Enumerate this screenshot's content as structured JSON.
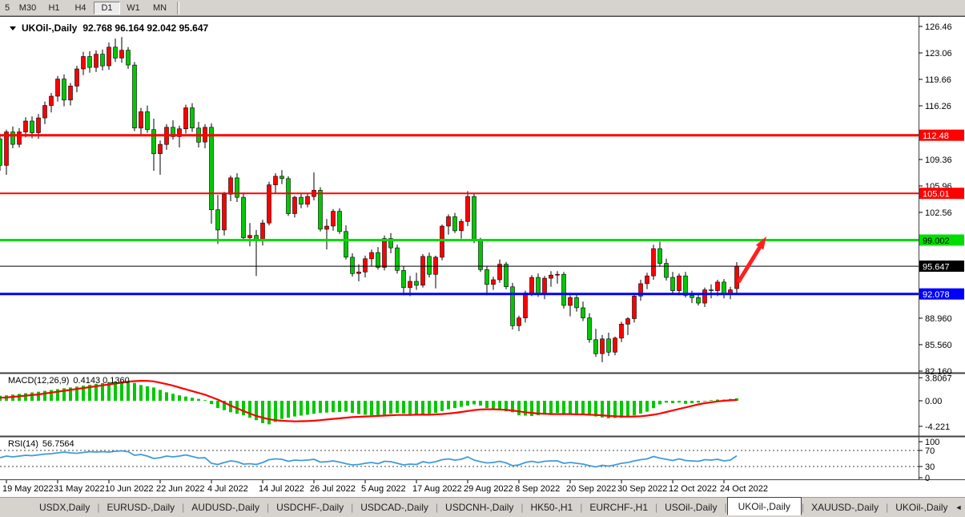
{
  "toolbar": {
    "timeframes": [
      "5",
      "M30",
      "H1",
      "H4",
      "D1",
      "W1",
      "MN"
    ],
    "active_timeframe": "D1"
  },
  "title": {
    "symbol": "UKOil-,Daily",
    "ohlc_text": "92.768 96.164 92.042 95.647",
    "open": "92.768",
    "high": "96.164",
    "low": "92.042",
    "close": "95.647"
  },
  "tabs": {
    "items": [
      "USDX,Daily",
      "EURUSD-,Daily",
      "AUDUSD-,Daily",
      "USDCHF-,Daily",
      "USDCAD-,Daily",
      "USDCNH-,Daily",
      "HK50-,H1",
      "EURCHF-,H1",
      "USOil-,Daily",
      "UKOil-,Daily",
      "XAUUSD-,Daily",
      "UKOil-,Daily"
    ],
    "active_index": 9,
    "scroll_left_icon": "◄",
    "scroll_right_icon": "►"
  },
  "colors": {
    "bull": "#FF0000",
    "bear": "#00C800",
    "wick": "#000000",
    "macd_histogram": "#00C800",
    "macd_signal": "#FF0000",
    "rsi_line": "#3F9BDB",
    "panel_bg": "#FFFFFF",
    "chrome_bg": "#D6D3CE",
    "line_red": "#FF0000",
    "line_green": "#00DE00",
    "line_blue": "#0000FF",
    "line_black": "#000000",
    "arrow": "#FF1F1F"
  },
  "chart_data": {
    "type": "candlestick",
    "symbol": "UKOil-,Daily",
    "current_bar": {
      "open": 92.768,
      "high": 96.164,
      "low": 92.042,
      "close": 95.647
    },
    "price_axis_ticks": [
      {
        "v": 126.46,
        "t": "126.46"
      },
      {
        "v": 123.06,
        "t": "123.06"
      },
      {
        "v": 119.66,
        "t": "119.66"
      },
      {
        "v": 116.26,
        "t": "116.26"
      },
      {
        "v": 109.36,
        "t": "109.36"
      },
      {
        "v": 105.96,
        "t": "105.96"
      },
      {
        "v": 102.56,
        "t": "102.56"
      },
      {
        "v": 88.96,
        "t": "88.960"
      },
      {
        "v": 85.56,
        "t": "85.560"
      },
      {
        "v": 82.16,
        "t": "82.160"
      }
    ],
    "hlines": [
      {
        "price": 112.48,
        "label": "112.48",
        "color": "#FF0000",
        "width": 3,
        "text_color": "#FFFFFF"
      },
      {
        "price": 105.01,
        "label": "105.01",
        "color": "#FF0000",
        "width": 2,
        "text_color": "#FFFFFF"
      },
      {
        "price": 99.002,
        "label": "99.002",
        "color": "#00DE00",
        "width": 3,
        "text_color": "#000000"
      },
      {
        "price": 95.647,
        "label": "95.647",
        "color": "#000000",
        "width": 1,
        "text_color": "#FFFFFF"
      },
      {
        "price": 92.078,
        "label": "92.078",
        "color": "#0000FF",
        "width": 3,
        "text_color": "#FFFFFF"
      }
    ],
    "date_labels": [
      "19 May 2022",
      "31 May 2022",
      "10 Jun 2022",
      "22 Jun 2022",
      "4 Jul 2022",
      "14 Jul 2022",
      "26 Jul 2022",
      "5 Aug 2022",
      "17 Aug 2022",
      "29 Aug 2022",
      "8 Sep 2022",
      "20 Sep 2022",
      "30 Sep 2022",
      "12 Oct 2022",
      "24 Oct 2022"
    ],
    "tick_first_candle_index": 1,
    "tick_candle_step": 8,
    "candles": [
      [
        112.0,
        112.5,
        107.9,
        108.6
      ],
      [
        108.6,
        113.2,
        107.4,
        112.9
      ],
      [
        112.9,
        113.6,
        110.8,
        111.3
      ],
      [
        111.3,
        113.4,
        110.9,
        112.9
      ],
      [
        112.9,
        114.8,
        112.2,
        114.3
      ],
      [
        114.3,
        114.9,
        112.1,
        112.8
      ],
      [
        112.8,
        115.2,
        112.0,
        114.7
      ],
      [
        114.7,
        116.8,
        113.9,
        116.3
      ],
      [
        116.3,
        117.9,
        115.4,
        117.5
      ],
      [
        117.5,
        120.1,
        116.8,
        119.7
      ],
      [
        119.7,
        120.3,
        116.2,
        117.0
      ],
      [
        117.0,
        119.2,
        116.3,
        118.8
      ],
      [
        118.8,
        121.4,
        118.0,
        121.0
      ],
      [
        121.0,
        123.2,
        120.2,
        122.6
      ],
      [
        122.6,
        123.3,
        120.5,
        121.2
      ],
      [
        121.2,
        123.4,
        120.6,
        122.9
      ],
      [
        122.9,
        123.5,
        120.8,
        121.4
      ],
      [
        121.4,
        124.4,
        120.9,
        123.8
      ],
      [
        123.8,
        124.9,
        121.9,
        122.4
      ],
      [
        122.4,
        125.1,
        121.8,
        123.4
      ],
      [
        123.4,
        123.8,
        121.0,
        121.5
      ],
      [
        121.5,
        121.9,
        113.0,
        113.4
      ],
      [
        113.4,
        116.0,
        112.6,
        115.5
      ],
      [
        115.5,
        116.3,
        112.8,
        113.2
      ],
      [
        113.2,
        114.6,
        107.9,
        110.1
      ],
      [
        110.1,
        111.8,
        107.4,
        111.3
      ],
      [
        111.3,
        113.9,
        110.6,
        113.5
      ],
      [
        113.5,
        114.4,
        111.9,
        112.3
      ],
      [
        112.3,
        113.7,
        110.9,
        113.3
      ],
      [
        113.3,
        116.4,
        112.7,
        116.0
      ],
      [
        116.0,
        116.6,
        112.9,
        113.4
      ],
      [
        113.4,
        114.2,
        110.9,
        111.6
      ],
      [
        111.6,
        113.9,
        110.8,
        113.5
      ],
      [
        113.5,
        114.0,
        101.1,
        102.9
      ],
      [
        102.9,
        104.8,
        98.5,
        100.3
      ],
      [
        100.3,
        105.2,
        99.6,
        104.9
      ],
      [
        104.9,
        107.3,
        104.0,
        107.0
      ],
      [
        107.0,
        107.6,
        103.9,
        104.5
      ],
      [
        104.5,
        105.1,
        98.9,
        99.3
      ],
      [
        99.3,
        101.2,
        98.2,
        99.6
      ],
      [
        99.6,
        100.3,
        94.4,
        99.1
      ],
      [
        99.1,
        101.6,
        98.3,
        101.2
      ],
      [
        101.2,
        106.5,
        100.9,
        106.1
      ],
      [
        106.1,
        107.6,
        105.0,
        107.2
      ],
      [
        107.2,
        108.0,
        106.2,
        106.9
      ],
      [
        106.9,
        107.2,
        102.1,
        102.4
      ],
      [
        102.4,
        104.7,
        101.9,
        104.5
      ],
      [
        104.5,
        104.9,
        103.1,
        103.6
      ],
      [
        103.6,
        105.0,
        103.2,
        104.6
      ],
      [
        104.6,
        107.7,
        104.1,
        105.4
      ],
      [
        105.4,
        105.8,
        100.1,
        100.4
      ],
      [
        100.4,
        101.7,
        97.8,
        100.8
      ],
      [
        100.8,
        103.0,
        100.2,
        102.7
      ],
      [
        102.7,
        103.1,
        99.8,
        100.1
      ],
      [
        100.1,
        100.9,
        96.5,
        96.8
      ],
      [
        96.8,
        97.3,
        94.3,
        94.7
      ],
      [
        94.7,
        95.9,
        93.7,
        94.9
      ],
      [
        94.9,
        97.0,
        94.2,
        96.6
      ],
      [
        96.6,
        97.8,
        95.6,
        97.4
      ],
      [
        97.4,
        98.1,
        95.2,
        95.5
      ],
      [
        95.5,
        99.6,
        95.1,
        99.2
      ],
      [
        99.2,
        99.9,
        97.3,
        98.0
      ],
      [
        98.0,
        98.4,
        94.7,
        95.1
      ],
      [
        95.1,
        95.6,
        91.9,
        92.9
      ],
      [
        92.9,
        94.4,
        91.8,
        93.7
      ],
      [
        93.7,
        94.8,
        92.6,
        93.2
      ],
      [
        93.2,
        97.2,
        92.9,
        96.9
      ],
      [
        96.9,
        97.4,
        94.2,
        94.6
      ],
      [
        94.6,
        97.0,
        92.8,
        96.8
      ],
      [
        96.8,
        101.0,
        96.4,
        100.8
      ],
      [
        100.8,
        102.3,
        99.7,
        102.0
      ],
      [
        102.0,
        102.5,
        99.9,
        100.2
      ],
      [
        100.2,
        101.7,
        99.2,
        101.4
      ],
      [
        101.4,
        105.3,
        100.8,
        104.6
      ],
      [
        104.6,
        105.0,
        98.6,
        98.9
      ],
      [
        98.9,
        99.3,
        94.9,
        95.2
      ],
      [
        95.2,
        95.7,
        91.9,
        93.3
      ],
      [
        93.3,
        94.3,
        92.6,
        93.9
      ],
      [
        93.9,
        96.5,
        93.5,
        95.9
      ],
      [
        95.9,
        96.2,
        92.7,
        93.0
      ],
      [
        93.0,
        93.5,
        87.5,
        88.0
      ],
      [
        88.0,
        89.3,
        87.3,
        89.0
      ],
      [
        89.0,
        92.5,
        88.4,
        92.2
      ],
      [
        92.2,
        94.5,
        91.8,
        94.2
      ],
      [
        94.2,
        94.7,
        91.7,
        92.1
      ],
      [
        92.1,
        94.4,
        91.4,
        94.1
      ],
      [
        94.1,
        95.0,
        93.0,
        94.5
      ],
      [
        94.5,
        95.0,
        93.4,
        94.6
      ],
      [
        94.6,
        94.9,
        90.2,
        90.6
      ],
      [
        90.6,
        91.9,
        89.2,
        91.6
      ],
      [
        91.6,
        92.0,
        89.8,
        90.3
      ],
      [
        90.3,
        91.1,
        88.6,
        89.0
      ],
      [
        89.0,
        89.6,
        85.8,
        86.2
      ],
      [
        86.2,
        87.6,
        84.0,
        84.4
      ],
      [
        84.4,
        86.8,
        83.3,
        86.3
      ],
      [
        86.3,
        87.1,
        84.1,
        84.6
      ],
      [
        84.6,
        86.6,
        84.2,
        86.4
      ],
      [
        86.4,
        88.5,
        85.9,
        88.2
      ],
      [
        88.2,
        89.1,
        86.8,
        88.9
      ],
      [
        88.9,
        92.1,
        88.4,
        91.8
      ],
      [
        91.8,
        93.9,
        91.2,
        93.4
      ],
      [
        93.4,
        94.8,
        92.7,
        94.4
      ],
      [
        94.4,
        98.4,
        93.9,
        97.9
      ],
      [
        97.9,
        98.8,
        95.6,
        96.0
      ],
      [
        96.0,
        96.6,
        93.8,
        94.2
      ],
      [
        94.2,
        94.9,
        92.2,
        92.5
      ],
      [
        92.5,
        94.7,
        91.9,
        94.4
      ],
      [
        94.4,
        94.9,
        91.6,
        91.9
      ],
      [
        91.9,
        92.5,
        90.9,
        91.6
      ],
      [
        91.6,
        92.2,
        90.6,
        90.9
      ],
      [
        90.9,
        92.9,
        90.4,
        92.6
      ],
      [
        92.6,
        93.3,
        91.5,
        92.5
      ],
      [
        92.5,
        93.9,
        91.8,
        93.6
      ],
      [
        93.6,
        94.0,
        91.5,
        92.0
      ],
      [
        92.0,
        93.0,
        91.4,
        92.6
      ],
      [
        92.768,
        96.164,
        92.042,
        95.647
      ]
    ],
    "macd": {
      "label": "MACD(12,26,9)",
      "values_text": "0.4143 0.1360",
      "axis_ticks": [
        {
          "v": 3.8067,
          "t": "3.8067"
        },
        {
          "v": 0,
          "t": "0.00"
        },
        {
          "v": -4.221,
          "t": "-4.221"
        }
      ],
      "histogram": [
        0.84,
        0.9,
        1.02,
        1.14,
        1.26,
        1.38,
        1.5,
        1.64,
        1.78,
        1.92,
        2.06,
        2.2,
        2.35,
        2.5,
        2.65,
        2.8,
        2.93,
        3.07,
        3.2,
        3.25,
        3.3,
        2.95,
        2.6,
        2.4,
        2.2,
        1.8,
        1.4,
        1.15,
        0.9,
        0.7,
        0.5,
        0.3,
        0.1,
        -0.55,
        -1.2,
        -1.55,
        -1.9,
        -2.15,
        -2.4,
        -2.8,
        -3.2,
        -3.7,
        -3.9,
        -3.5,
        -3.0,
        -2.8,
        -2.6,
        -2.45,
        -2.3,
        -2.15,
        -2.0,
        -1.95,
        -1.9,
        -1.85,
        -1.8,
        -2.0,
        -2.2,
        -2.3,
        -2.4,
        -2.35,
        -2.3,
        -2.15,
        -2.0,
        -2.1,
        -2.2,
        -2.25,
        -2.3,
        -2.15,
        -2.0,
        -1.7,
        -1.4,
        -1.2,
        -1.0,
        -0.8,
        -0.6,
        -0.8,
        -1.2,
        -1.4,
        -1.6,
        -1.75,
        -1.9,
        -2.4,
        -2.45,
        -2.5,
        -2.4,
        -2.3,
        -2.15,
        -2.0,
        -2.1,
        -2.2,
        -2.25,
        -2.3,
        -2.45,
        -2.6,
        -2.75,
        -2.9,
        -2.85,
        -2.8,
        -2.6,
        -2.4,
        -2.1,
        -1.8,
        -1.2,
        -0.6,
        -0.3,
        -0.4,
        -0.3,
        -0.5,
        -0.4,
        -0.3,
        -0.1,
        0.1,
        0.2,
        0.2,
        0.3,
        0.4143
      ],
      "signal": [
        0.5,
        0.55,
        0.65,
        0.75,
        0.85,
        0.95,
        1.05,
        1.2,
        1.35,
        1.5,
        1.65,
        1.8,
        1.95,
        2.1,
        2.25,
        2.4,
        2.55,
        2.7,
        2.85,
        3.0,
        3.15,
        3.25,
        3.3,
        3.28,
        3.2,
        3.0,
        2.75,
        2.5,
        2.2,
        1.9,
        1.6,
        1.3,
        1.0,
        0.6,
        0.2,
        -0.3,
        -0.8,
        -1.25,
        -1.7,
        -2.1,
        -2.5,
        -2.8,
        -3.05,
        -3.2,
        -3.3,
        -3.35,
        -3.4,
        -3.38,
        -3.35,
        -3.3,
        -3.2,
        -3.1,
        -3.0,
        -2.9,
        -2.8,
        -2.7,
        -2.65,
        -2.6,
        -2.55,
        -2.5,
        -2.45,
        -2.4,
        -2.35,
        -2.35,
        -2.35,
        -2.3,
        -2.3,
        -2.3,
        -2.25,
        -2.2,
        -2.1,
        -2.0,
        -1.85,
        -1.7,
        -1.55,
        -1.45,
        -1.4,
        -1.4,
        -1.45,
        -1.5,
        -1.6,
        -1.75,
        -1.9,
        -2.0,
        -2.1,
        -2.15,
        -2.2,
        -2.2,
        -2.2,
        -2.2,
        -2.25,
        -2.25,
        -2.3,
        -2.35,
        -2.4,
        -2.5,
        -2.55,
        -2.6,
        -2.62,
        -2.6,
        -2.55,
        -2.45,
        -2.3,
        -2.1,
        -1.85,
        -1.6,
        -1.35,
        -1.1,
        -0.85,
        -0.6,
        -0.4,
        -0.25,
        -0.1,
        0.0,
        0.08,
        0.136
      ]
    },
    "rsi": {
      "label": "RSI(14)",
      "value_text": "56.7564",
      "levels": [
        70,
        30
      ],
      "axis_ticks": [
        {
          "v": 100,
          "t": "100"
        },
        {
          "v": 70,
          "t": "70"
        },
        {
          "v": 30,
          "t": "30"
        },
        {
          "v": 0,
          "t": "0"
        }
      ],
      "values": [
        52,
        56,
        54,
        56,
        58,
        57,
        59,
        61,
        62,
        64,
        66,
        64,
        63,
        65,
        67,
        66,
        67,
        66,
        68,
        69,
        67,
        58,
        60,
        56,
        50,
        52,
        56,
        54,
        56,
        59,
        55,
        51,
        52,
        38,
        35,
        40,
        44,
        42,
        36,
        37,
        35,
        40,
        47,
        49,
        48,
        43,
        46,
        45,
        46,
        48,
        41,
        42,
        44,
        41,
        37,
        34,
        35,
        38,
        40,
        37,
        43,
        42,
        38,
        34,
        36,
        35,
        42,
        39,
        42,
        47,
        49,
        46,
        48,
        54,
        46,
        42,
        39,
        40,
        43,
        39,
        32,
        34,
        40,
        43,
        40,
        43,
        44,
        44,
        38,
        40,
        38,
        36,
        32,
        29,
        33,
        31,
        34,
        38,
        40,
        44,
        47,
        49,
        55,
        51,
        48,
        45,
        49,
        45,
        44,
        43,
        47,
        46,
        48,
        44,
        46,
        56.76
      ]
    },
    "annotation_arrow": {
      "from": [
        922,
        352
      ],
      "to": [
        957,
        295
      ],
      "color": "#FF1F1F"
    }
  }
}
